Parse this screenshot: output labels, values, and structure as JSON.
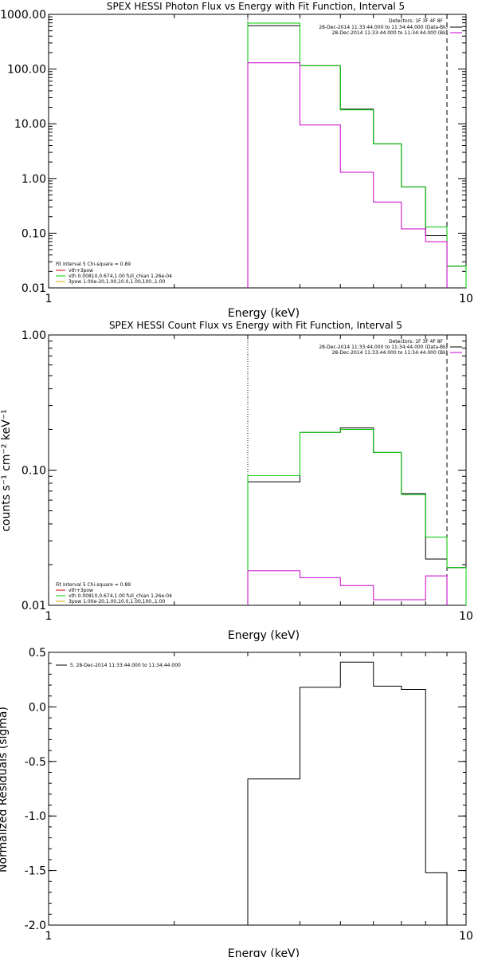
{
  "chart_data": [
    {
      "type": "line",
      "title": "SPEX HESSI Photon Flux vs Energy with Fit Function, Interval 5",
      "xlabel": "Energy (keV)",
      "ylabel": "",
      "xscale": "log",
      "yscale": "log",
      "xlim": [
        1,
        10
      ],
      "ylim": [
        0.01,
        1000
      ],
      "x_ticks": [
        "1",
        "10"
      ],
      "y_ticks": [
        "1000.00",
        "100.00",
        "10.00",
        "1.00",
        "0.10",
        "0.01"
      ],
      "x_edges": [
        3,
        4,
        5,
        6,
        7,
        8,
        9,
        10
      ],
      "series": [
        {
          "label": "black",
          "color": "#000000",
          "values": [
            620,
            115,
            18.5,
            4.3,
            0.7,
            0.09,
            0.025
          ]
        },
        {
          "label": "green",
          "color": "#00cc00",
          "values": [
            690,
            115,
            18,
            4.3,
            0.7,
            0.13,
            0.025
          ]
        },
        {
          "label": "magenta",
          "color": "#cc00cc",
          "values": [
            130,
            9.5,
            1.3,
            0.37,
            0.12,
            0.07,
            null
          ]
        }
      ],
      "vlines": [
        {
          "x": 3,
          "style": "dotted"
        },
        {
          "x": 9,
          "style": "dashed"
        }
      ],
      "detectors_text": "Detectors: 1F 3F 4F 8F",
      "legend_right": [
        {
          "text": "28-Dec-2014 11:33:44.000 to 11:34:44.000 (Data-Bk)",
          "color": "#000000"
        },
        {
          "text": "28-Dec-2014 11:33:44.000 to 11:34:44.000 (Bk)",
          "color": "#cc00cc"
        }
      ],
      "legend_left_header": "Fit Interval 5   Chi-square = 0.89",
      "legend_left": [
        {
          "text": "vth+3pow",
          "color": "#cc0000"
        },
        {
          "text": "vth 0.00810,0.674,1.00   full_chian 1.26e-04",
          "color": "#00cc00"
        },
        {
          "text": "3pow 1.00e-20,1.00,10.0,1.00,100.,1.00",
          "color": "#ccaa00"
        }
      ]
    },
    {
      "type": "line",
      "title": "SPEX HESSI Count Flux vs Energy with Fit Function, Interval 5",
      "xlabel": "Energy (keV)",
      "ylabel": "counts s⁻¹ cm⁻² keV⁻¹",
      "xscale": "log",
      "yscale": "log",
      "xlim": [
        1,
        10
      ],
      "ylim": [
        0.01,
        1
      ],
      "x_ticks": [
        "1",
        "10"
      ],
      "y_ticks": [
        "1.00",
        "0.10",
        "0.01"
      ],
      "x_edges": [
        3,
        4,
        5,
        6,
        7,
        8,
        9,
        10
      ],
      "series": [
        {
          "label": "black",
          "color": "#000000",
          "values": [
            0.082,
            0.19,
            0.205,
            0.135,
            0.067,
            0.022,
            0.019
          ]
        },
        {
          "label": "green",
          "color": "#00cc00",
          "values": [
            0.091,
            0.19,
            0.2,
            0.135,
            0.066,
            0.032,
            0.019
          ]
        },
        {
          "label": "magenta",
          "color": "#cc00cc",
          "values": [
            0.018,
            0.016,
            0.014,
            0.011,
            0.011,
            0.0165,
            null
          ]
        }
      ],
      "vlines": [
        {
          "x": 3,
          "style": "dotted"
        },
        {
          "x": 9,
          "style": "dashed"
        }
      ],
      "detectors_text": "Detectors: 1F 3F 4F 8F",
      "legend_right": [
        {
          "text": "28-Dec-2014 11:33:44.000 to 11:34:44.000 (Data-Bk)",
          "color": "#000000"
        },
        {
          "text": "28-Dec-2014 11:33:44.000 to 11:34:44.000 (Bk)",
          "color": "#cc00cc"
        }
      ],
      "legend_left_header": "Fit Interval 5   Chi-square = 0.89",
      "legend_left": [
        {
          "text": "vth+3pow",
          "color": "#cc0000"
        },
        {
          "text": "vth 0.00810,0.674,1.00   full_chian 1.26e-04",
          "color": "#00cc00"
        },
        {
          "text": "3pow 1.00e-20,1.00,10.0,1.00,100.,1.00",
          "color": "#ccaa00"
        }
      ]
    },
    {
      "type": "line",
      "title": "",
      "xlabel": "Energy (keV)",
      "ylabel": "Normalized Residuals (sigma)",
      "xscale": "log",
      "yscale": "linear",
      "xlim": [
        1,
        10
      ],
      "ylim": [
        -2.0,
        0.5
      ],
      "x_ticks": [
        "1",
        "10"
      ],
      "y_ticks": [
        "0.5",
        "0.0",
        "-0.5",
        "-1.0",
        "-1.5",
        "-2.0"
      ],
      "x_edges": [
        3,
        4,
        5,
        6,
        7,
        8,
        9
      ],
      "series": [
        {
          "label": "residuals",
          "color": "#000000",
          "values": [
            -0.66,
            0.18,
            0.41,
            0.19,
            0.16,
            -1.52
          ]
        }
      ],
      "legend_text": "5. 28-Dec-2014 11:33:44.000 to 11:34:44.000"
    }
  ]
}
